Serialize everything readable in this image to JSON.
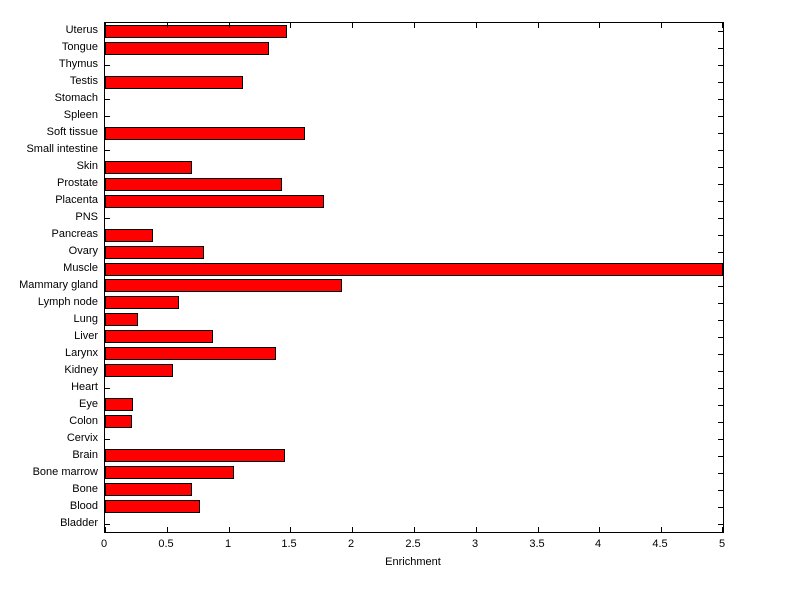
{
  "chart_data": {
    "type": "bar",
    "orientation": "horizontal",
    "title": "",
    "xlabel": "Enrichment",
    "ylabel": "",
    "xlim": [
      0,
      5
    ],
    "xticks": [
      0,
      0.5,
      1,
      1.5,
      2,
      2.5,
      3,
      3.5,
      4,
      4.5,
      5
    ],
    "xtick_labels": [
      "0",
      "0.5",
      "1",
      "1.5",
      "2",
      "2.5",
      "3",
      "3.5",
      "4",
      "4.5",
      "5"
    ],
    "grid": false,
    "legend": "none",
    "bar_color": "#ff0000",
    "bar_edge_color": "#000000",
    "categories": [
      "Uterus",
      "Tongue",
      "Thymus",
      "Testis",
      "Stomach",
      "Spleen",
      "Soft tissue",
      "Small intestine",
      "Skin",
      "Prostate",
      "Placenta",
      "PNS",
      "Pancreas",
      "Ovary",
      "Muscle",
      "Mammary gland",
      "Lymph node",
      "Lung",
      "Liver",
      "Larynx",
      "Kidney",
      "Heart",
      "Eye",
      "Colon",
      "Cervix",
      "Brain",
      "Bone marrow",
      "Bone",
      "Blood",
      "Bladder"
    ],
    "values": [
      1.47,
      1.33,
      0,
      1.12,
      0,
      0,
      1.62,
      0,
      0.7,
      1.43,
      1.77,
      0,
      0.39,
      0.8,
      5.0,
      1.92,
      0.6,
      0.27,
      0.87,
      1.38,
      0.55,
      0,
      0.23,
      0.22,
      0,
      1.46,
      1.04,
      0.7,
      0.77,
      0
    ]
  }
}
